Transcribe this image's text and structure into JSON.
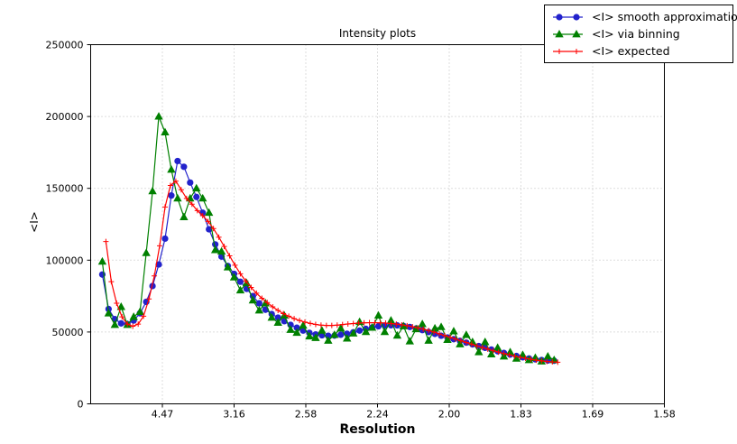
{
  "figure": {
    "title": "Intensity plots"
  },
  "axes": {
    "x_label": "Resolution",
    "y_label": "<I>"
  },
  "legend": {
    "items": [
      {
        "label": "<I> smooth approximation",
        "marker": "circle",
        "color": "#2222cc"
      },
      {
        "label": "<I> via binning",
        "marker": "triangle",
        "color": "#008000"
      },
      {
        "label": "<I> expected",
        "marker": "plus",
        "color": "#ff0000"
      }
    ]
  },
  "chart_data": {
    "type": "line",
    "title": "Intensity plots",
    "xlabel": "Resolution",
    "ylabel": "<I>",
    "x_scale": "linear in 1/d^2 (resolution d in Angstrom)",
    "x_tick_labels": [
      "4.47",
      "3.16",
      "2.58",
      "2.24",
      "2.00",
      "1.83",
      "1.69",
      "1.58"
    ],
    "x_ticks_inv_d2": [
      0.05,
      0.1,
      0.15,
      0.2,
      0.25,
      0.3,
      0.35,
      0.4
    ],
    "xlim_inv_d2": [
      0,
      0.4
    ],
    "y_ticks": [
      0,
      50000,
      100000,
      150000,
      200000,
      250000
    ],
    "ylim": [
      0,
      250000
    ],
    "grid": true,
    "legend_position": "upper right",
    "series": [
      {
        "name": "<I> smooth approximation",
        "color": "#2222cc",
        "marker": "circle",
        "inv_d2_start": 0.008125,
        "inv_d2_step": 0.004375,
        "values": [
          90000,
          66000,
          59000,
          56000,
          55500,
          58000,
          63000,
          71000,
          82000,
          97000,
          115000,
          145000,
          169000,
          165000,
          154000,
          144000,
          133000,
          121500,
          111000,
          102500,
          96000,
          90500,
          85000,
          80000,
          75000,
          70000,
          65500,
          62500,
          60000,
          57500,
          55000,
          53000,
          51000,
          49400,
          48300,
          47700,
          47400,
          47500,
          48100,
          48800,
          49800,
          51000,
          52200,
          53200,
          54000,
          54500,
          54700,
          54600,
          54200,
          53500,
          52500,
          51300,
          50000,
          48700,
          47400,
          46200,
          45000,
          43800,
          42600,
          41400,
          40200,
          39000,
          37800,
          36600,
          35400,
          34300,
          33300,
          32400,
          31600,
          31000,
          30500,
          30200,
          30000
        ]
      },
      {
        "name": "<I> via binning",
        "color": "#008000",
        "marker": "triangle",
        "inv_d2_start": 0.008125,
        "inv_d2_step": 0.004375,
        "values": [
          99000,
          63000,
          55000,
          67500,
          55000,
          60500,
          64000,
          105000,
          148000,
          200000,
          189000,
          163000,
          143000,
          130000,
          143000,
          150000,
          143000,
          133000,
          107000,
          106000,
          95000,
          88000,
          79000,
          84000,
          72000,
          65000,
          70000,
          60000,
          56500,
          61500,
          51500,
          49500,
          54500,
          47000,
          45900,
          51000,
          44000,
          48000,
          52500,
          45500,
          49000,
          57000,
          50000,
          53000,
          61500,
          50000,
          58000,
          47500,
          54000,
          43500,
          52000,
          55500,
          44000,
          52500,
          53500,
          44500,
          50500,
          41500,
          48000,
          43000,
          36000,
          43000,
          34500,
          39000,
          33000,
          36000,
          31500,
          34000,
          30500,
          32000,
          29500,
          33000,
          30500
        ]
      },
      {
        "name": "<I> expected",
        "color": "#ff0000",
        "marker": "plus",
        "inv_d2_start": 0.010625,
        "inv_d2_step": 0.00375,
        "values": [
          113000,
          85000,
          70000,
          60500,
          55500,
          54000,
          55500,
          61000,
          73000,
          89000,
          110000,
          137000,
          152000,
          155000,
          149000,
          143000,
          139000,
          134500,
          131000,
          127000,
          122000,
          116000,
          109500,
          103000,
          96500,
          90500,
          85500,
          81000,
          77000,
          73500,
          70500,
          67500,
          65000,
          62800,
          61000,
          59300,
          58000,
          56900,
          56000,
          55300,
          54800,
          54600,
          54600,
          54800,
          55200,
          55600,
          55900,
          56200,
          56400,
          56500,
          56500,
          56400,
          56200,
          55900,
          55500,
          55000,
          54400,
          53700,
          52900,
          52000,
          51000,
          49900,
          48700,
          47500,
          46300,
          45100,
          43900,
          42700,
          41500,
          40300,
          39200,
          38100,
          37000,
          36000,
          35000,
          34100,
          33200,
          32400,
          31700,
          31000,
          30400,
          29900,
          29500,
          29200,
          29000
        ]
      }
    ]
  }
}
